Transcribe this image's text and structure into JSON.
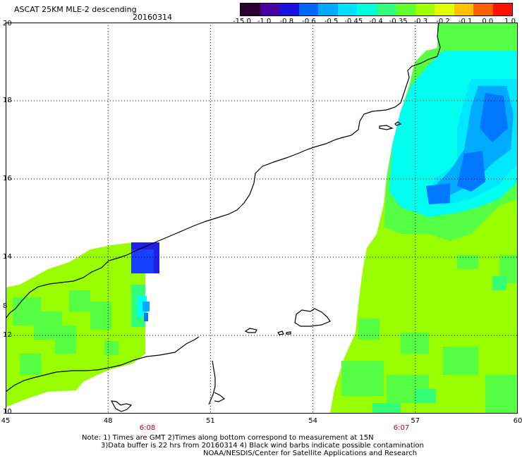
{
  "header": {
    "title": "ASCAT 25KM MLE-2 descending",
    "date": "20160314"
  },
  "colorbar": {
    "colors": [
      "#2a0030",
      "#4a00a0",
      "#1a10e0",
      "#0066ff",
      "#00a8ff",
      "#00e0ff",
      "#00ffd8",
      "#30ff80",
      "#60ff30",
      "#a0ff00",
      "#e0ff00",
      "#ffc000",
      "#ff6000",
      "#ff1000"
    ],
    "labels": [
      "-15.0",
      "-1.0",
      "-0.8",
      "-0.6",
      "-0.5",
      "-0.45",
      "-0.4",
      "-0.35",
      "-0.3",
      "-0.2",
      "-0.1",
      "0.0",
      "1.0"
    ]
  },
  "map": {
    "lat_labels": [
      "20",
      "18",
      "16",
      "14",
      "12",
      "10"
    ],
    "lon_labels": [
      "45",
      "48",
      "51",
      "54",
      "57",
      "60"
    ],
    "lat_range": [
      10,
      20
    ],
    "lon_range": [
      45,
      60
    ],
    "extra_lat_label": "8",
    "pass_times": [
      "6:08",
      "6:07"
    ]
  },
  "notes": {
    "line1": "Note: 1) Times are GMT 2)Times along bottom correspond to measurement at 15N",
    "line2": "3)Data buffer is 22 hrs from 20160314 4) Black wind barbs indicate possible contamination",
    "line3": "NOAA/NESDIS/Center for Satellite Applications and Research"
  }
}
